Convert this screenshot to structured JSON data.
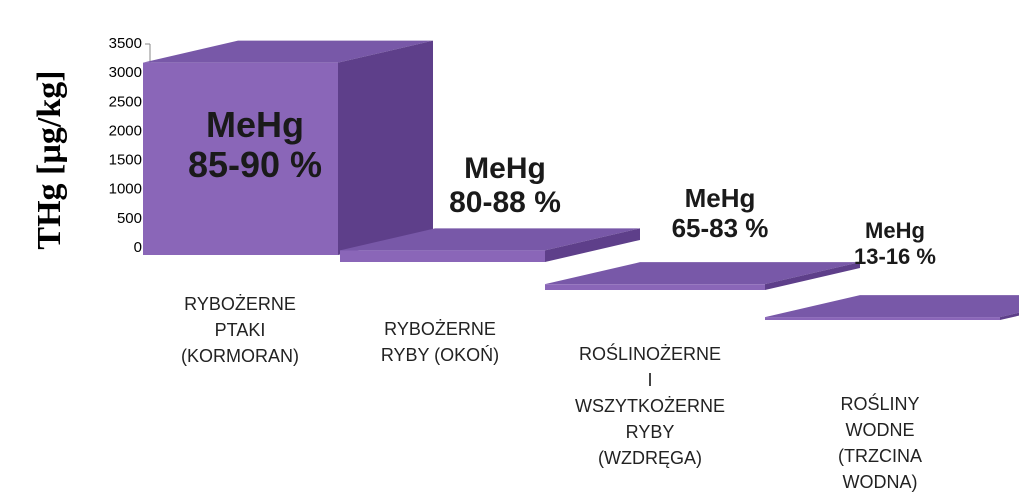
{
  "chart_data": {
    "type": "bar3d",
    "y_label": "THg [µg/kg]",
    "categories": [
      "RYBOŻERNE\nPTAKI\n(KORMORAN)",
      "RYBOŻERNE\nRYBY (OKOŃ)",
      "ROŚLINOŻERNE\nI\nWSZYTKOŻERNE\nRYBY\n(WZDRĘGA)",
      "ROŚLINY\nWODNE\n(TRZCINA\nWODNA)"
    ],
    "values": [
      3300,
      200,
      100,
      50
    ],
    "annotations": [
      "MeHg\n85-90 %",
      "MeHg\n80-88 %",
      "MeHg\n65-83 %",
      "MeHg\n13-16 %"
    ],
    "color": "#8a66b8",
    "ylim": [
      0,
      3500
    ],
    "yticks": [
      0,
      500,
      1000,
      1500,
      2000,
      2500,
      3000,
      3500
    ]
  }
}
